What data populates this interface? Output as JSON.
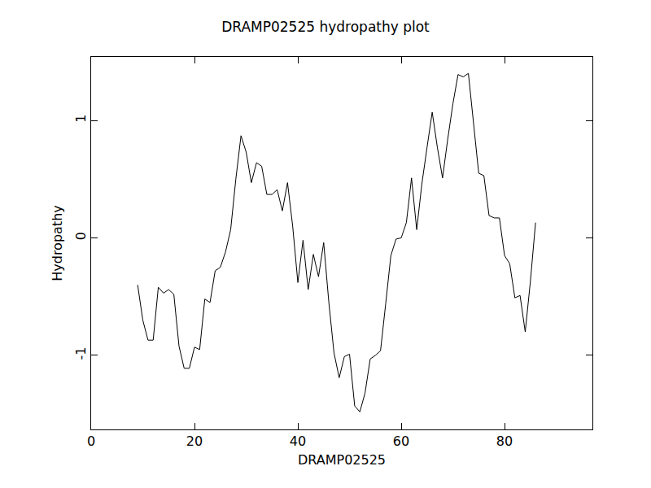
{
  "chart_data": {
    "type": "line",
    "title": "DRAMP02525 hydropathy plot",
    "x_label": "DRAMP02525",
    "y_label": "Hydropathy",
    "x": [
      9,
      10,
      11,
      12,
      13,
      14,
      15,
      16,
      17,
      18,
      19,
      20,
      21,
      22,
      23,
      24,
      25,
      26,
      27,
      28,
      29,
      30,
      31,
      32,
      33,
      34,
      35,
      36,
      37,
      38,
      39,
      40,
      41,
      42,
      43,
      44,
      45,
      46,
      47,
      48,
      49,
      50,
      51,
      52,
      53,
      54,
      55,
      56,
      57,
      58,
      59,
      60,
      61,
      62,
      63,
      64,
      65,
      66,
      67,
      68,
      69,
      70,
      71,
      72,
      73,
      74,
      75,
      76,
      77,
      78,
      79,
      80,
      81,
      82,
      83,
      84,
      85,
      86
    ],
    "values": [
      -0.4,
      -0.7,
      -0.87,
      -0.87,
      -0.42,
      -0.47,
      -0.44,
      -0.48,
      -0.92,
      -1.11,
      -1.11,
      -0.93,
      -0.95,
      -0.52,
      -0.55,
      -0.28,
      -0.25,
      -0.12,
      0.07,
      0.5,
      0.87,
      0.73,
      0.47,
      0.64,
      0.61,
      0.37,
      0.37,
      0.41,
      0.23,
      0.47,
      0.1,
      -0.38,
      -0.02,
      -0.44,
      -0.14,
      -0.33,
      -0.04,
      -0.55,
      -0.98,
      -1.19,
      -1.01,
      -0.99,
      -1.43,
      -1.48,
      -1.32,
      -1.03,
      -1.0,
      -0.96,
      -0.56,
      -0.15,
      -0.01,
      0.0,
      0.13,
      0.51,
      0.07,
      0.46,
      0.77,
      1.07,
      0.77,
      0.51,
      0.84,
      1.14,
      1.39,
      1.37,
      1.4,
      0.96,
      0.55,
      0.53,
      0.19,
      0.17,
      0.17,
      -0.15,
      -0.22,
      -0.51,
      -0.49,
      -0.8,
      -0.37,
      0.13
    ],
    "color": "#000000",
    "xlim": [
      0,
      97
    ],
    "xticks": [
      0,
      20,
      40,
      60,
      80
    ],
    "ylim": [
      -1.63,
      1.54
    ],
    "yticks": [
      -1,
      0,
      1
    ],
    "grid": false
  }
}
